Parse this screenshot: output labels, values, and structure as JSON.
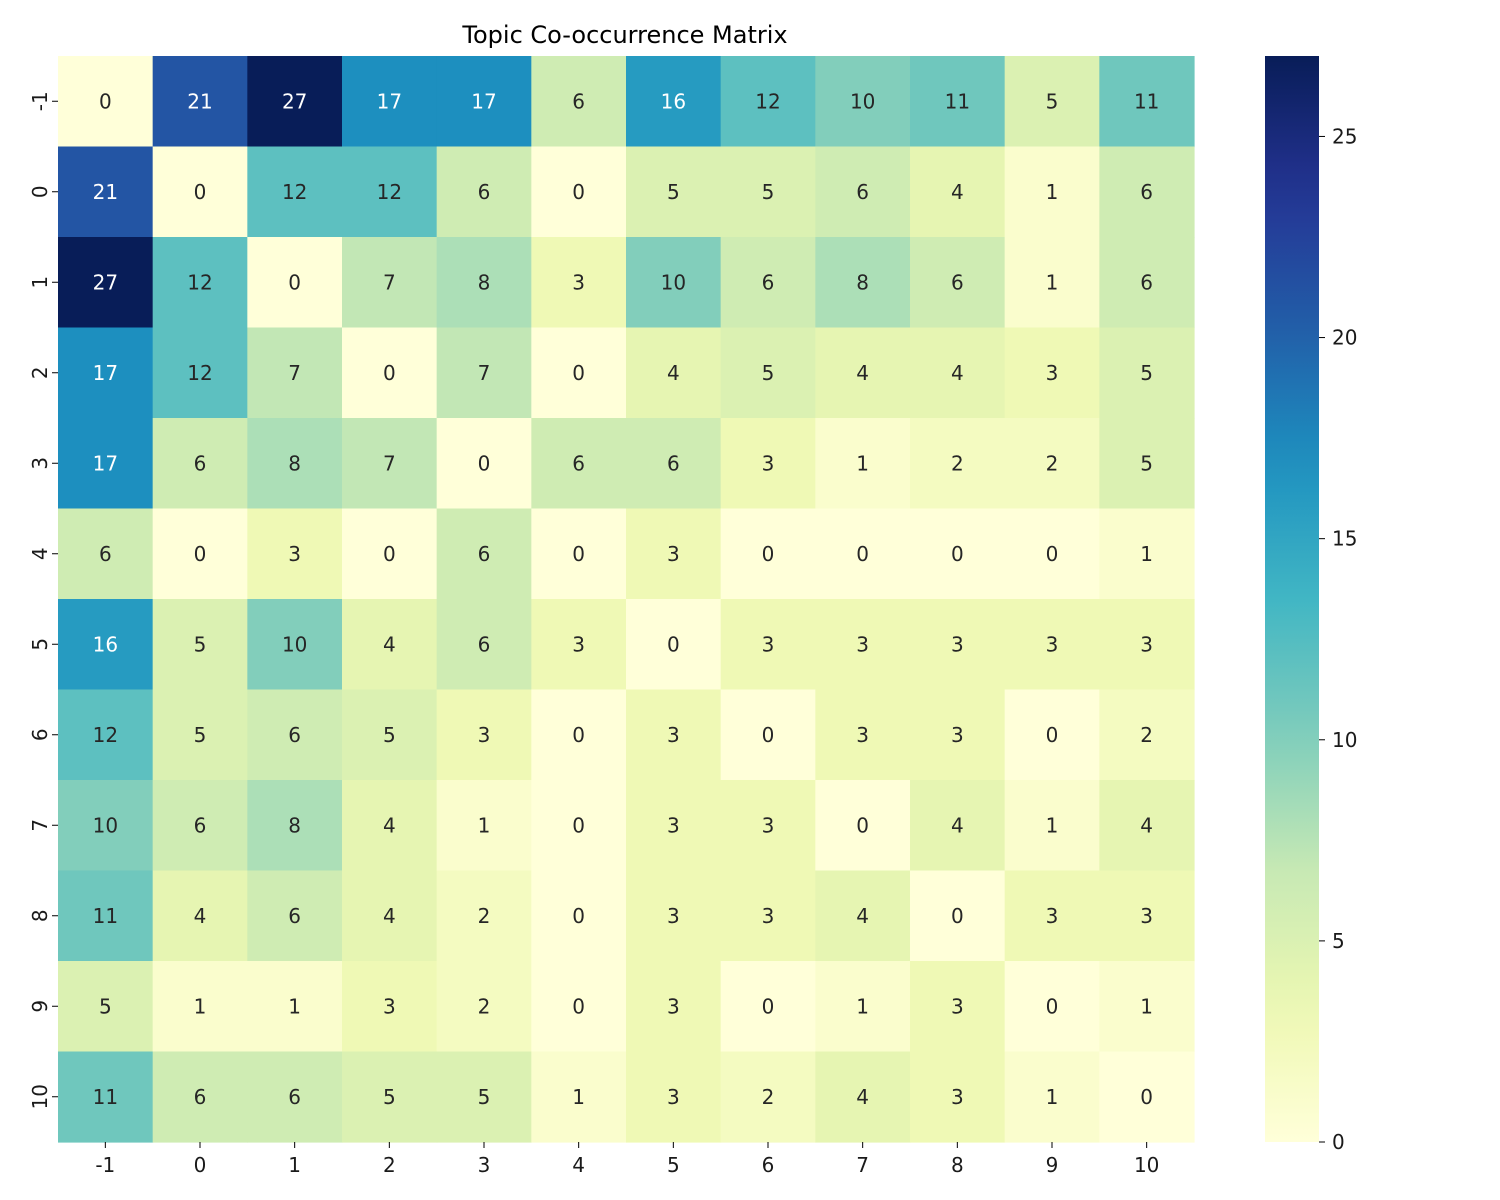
{
  "chart_data": {
    "type": "heatmap",
    "title": "Topic Co-occurrence Matrix",
    "x_categories": [
      "-1",
      "0",
      "1",
      "2",
      "3",
      "4",
      "5",
      "6",
      "7",
      "8",
      "9",
      "10"
    ],
    "y_categories": [
      "-1",
      "0",
      "1",
      "2",
      "3",
      "4",
      "5",
      "6",
      "7",
      "8",
      "9",
      "10"
    ],
    "values": [
      [
        0,
        21,
        27,
        17,
        17,
        6,
        16,
        12,
        10,
        11,
        5,
        11
      ],
      [
        21,
        0,
        12,
        12,
        6,
        0,
        5,
        5,
        6,
        4,
        1,
        6
      ],
      [
        27,
        12,
        0,
        7,
        8,
        3,
        10,
        6,
        8,
        6,
        1,
        6
      ],
      [
        17,
        12,
        7,
        0,
        7,
        0,
        4,
        5,
        4,
        4,
        3,
        5
      ],
      [
        17,
        6,
        8,
        7,
        0,
        6,
        6,
        3,
        1,
        2,
        2,
        5
      ],
      [
        6,
        0,
        3,
        0,
        6,
        0,
        3,
        0,
        0,
        0,
        0,
        1
      ],
      [
        16,
        5,
        10,
        4,
        6,
        3,
        0,
        3,
        3,
        3,
        3,
        3
      ],
      [
        12,
        5,
        6,
        5,
        3,
        0,
        3,
        0,
        3,
        3,
        0,
        2
      ],
      [
        10,
        6,
        8,
        4,
        1,
        0,
        3,
        3,
        0,
        4,
        1,
        4
      ],
      [
        11,
        4,
        6,
        4,
        2,
        0,
        3,
        3,
        4,
        0,
        3,
        3
      ],
      [
        5,
        1,
        1,
        3,
        2,
        0,
        3,
        0,
        1,
        3,
        0,
        1
      ],
      [
        11,
        6,
        6,
        5,
        5,
        1,
        3,
        2,
        4,
        3,
        1,
        0
      ]
    ],
    "colormap": "YlGnBu",
    "vmin": 0,
    "vmax": 27,
    "colorbar_ticks": [
      "0",
      "5",
      "10",
      "15",
      "20",
      "25"
    ],
    "colorbar_tick_values": [
      0,
      5,
      10,
      15,
      20,
      25
    ],
    "xlabel": "",
    "ylabel": "",
    "annotated": true
  }
}
